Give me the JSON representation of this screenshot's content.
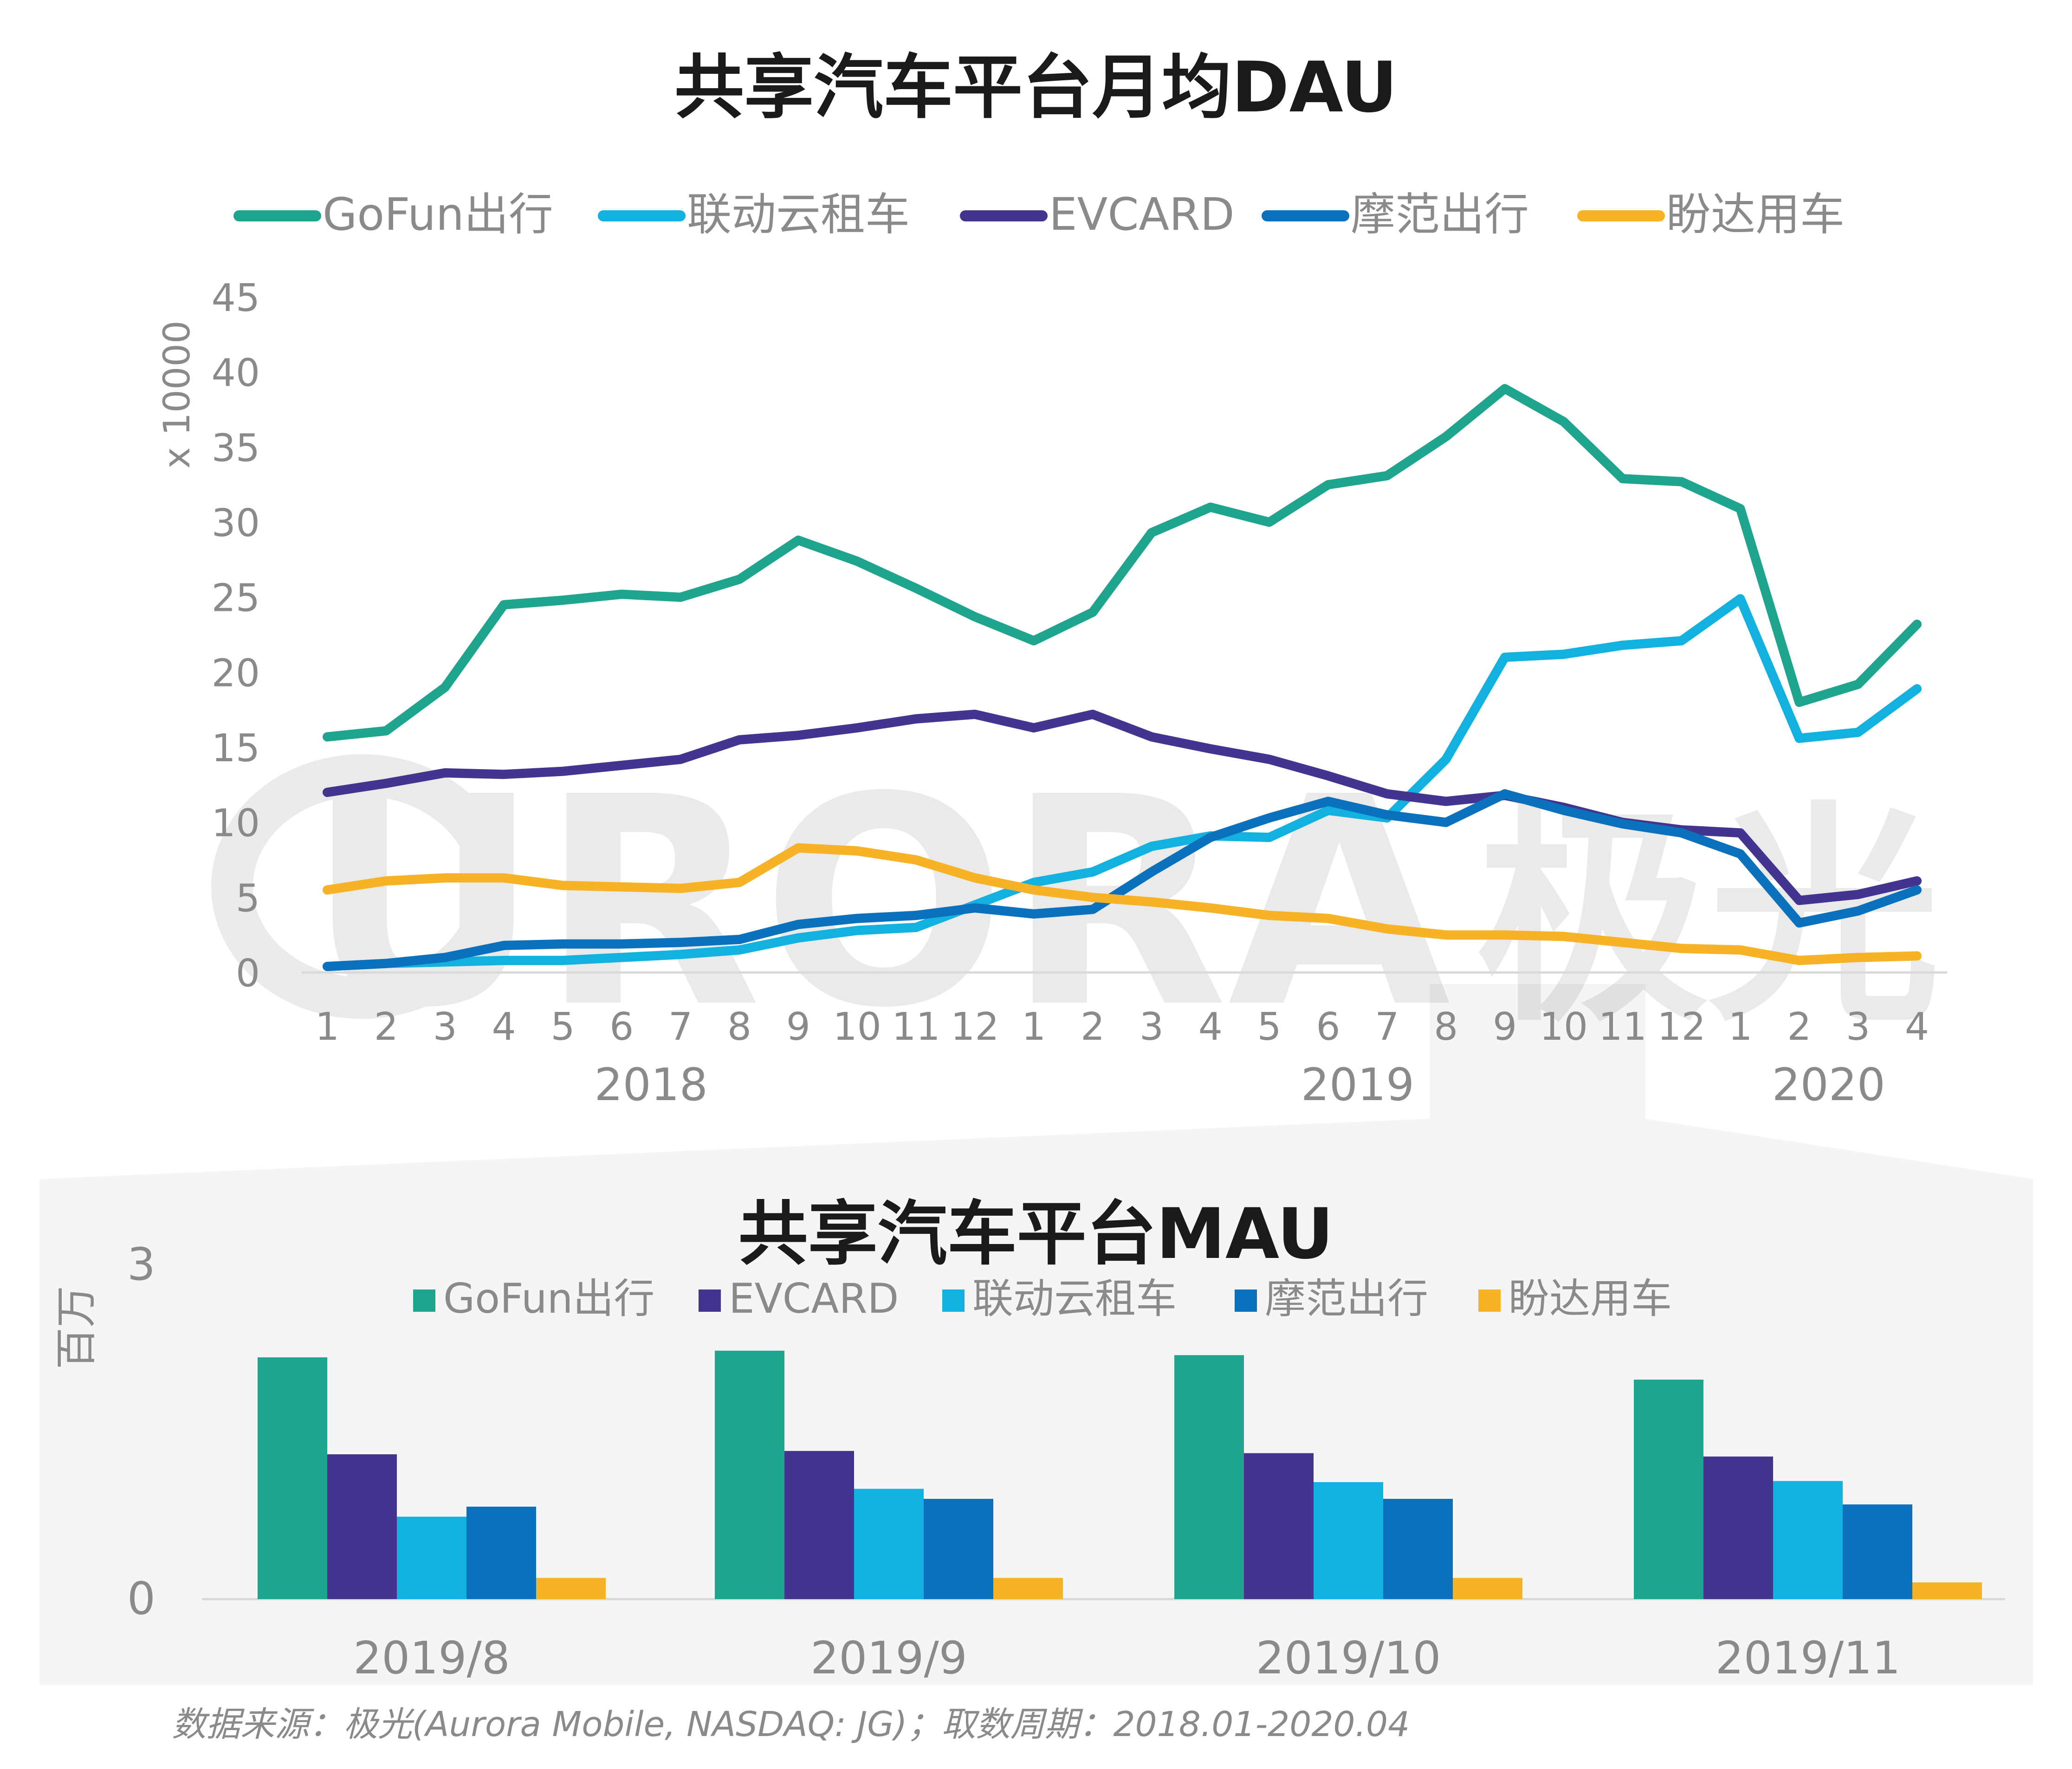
{
  "watermark": {
    "text": "URORA",
    "cjk": "极光"
  },
  "source_note": "数据来源：极光(Aurora Mobile, NASDAQ: JG)；取数周期：2018.01-2020.04",
  "chart_data": [
    {
      "type": "line",
      "title": "共享汽车平台月均DAU",
      "ylabel": "x 10000",
      "ylim": [
        0,
        45
      ],
      "yticks": [
        0,
        5,
        10,
        15,
        20,
        25,
        30,
        35,
        40,
        45
      ],
      "grid": false,
      "legend": "top",
      "categories": [
        "1",
        "2",
        "3",
        "4",
        "5",
        "6",
        "7",
        "8",
        "9",
        "10",
        "11",
        "12",
        "1",
        "2",
        "3",
        "4",
        "5",
        "6",
        "7",
        "8",
        "9",
        "10",
        "11",
        "12",
        "1",
        "2",
        "3",
        "4"
      ],
      "year_groups": [
        {
          "label": "2018",
          "start": 0,
          "end": 11
        },
        {
          "label": "2019",
          "start": 12,
          "end": 23
        },
        {
          "label": "2020",
          "start": 24,
          "end": 27
        }
      ],
      "series": [
        {
          "name": "GoFun出行",
          "color": "#1fa58d",
          "values": [
            15.7,
            16.1,
            19.0,
            24.5,
            24.8,
            25.2,
            25.0,
            26.2,
            28.8,
            27.4,
            25.6,
            23.7,
            22.1,
            24.0,
            29.3,
            31.0,
            30.0,
            32.5,
            33.1,
            35.7,
            38.9,
            36.7,
            32.9,
            32.7,
            30.9,
            18.0,
            19.2,
            23.2
          ]
        },
        {
          "name": "联动云租车",
          "color": "#12b1e0",
          "values": [
            0.4,
            0.6,
            0.7,
            0.8,
            0.8,
            1.0,
            1.2,
            1.5,
            2.3,
            2.8,
            3.0,
            4.5,
            6.0,
            6.7,
            8.4,
            9.1,
            9.0,
            10.8,
            10.3,
            14.2,
            21.0,
            21.2,
            21.8,
            22.1,
            24.9,
            15.6,
            16.0,
            18.9
          ]
        },
        {
          "name": "EVCARD",
          "color": "#42348f",
          "values": [
            12.0,
            12.6,
            13.3,
            13.2,
            13.4,
            13.8,
            14.2,
            15.5,
            15.8,
            16.3,
            16.9,
            17.2,
            16.3,
            17.2,
            15.7,
            14.9,
            14.2,
            13.1,
            11.9,
            11.4,
            11.8,
            11.0,
            10.0,
            9.5,
            9.3,
            4.8,
            5.2,
            6.1
          ]
        },
        {
          "name": "摩范出行",
          "color": "#0b71bd",
          "values": [
            0.4,
            0.6,
            1.0,
            1.8,
            1.9,
            1.9,
            2.0,
            2.2,
            3.2,
            3.6,
            3.8,
            4.3,
            3.9,
            4.2,
            6.7,
            9.0,
            10.3,
            11.4,
            10.5,
            10.0,
            11.9,
            10.8,
            9.9,
            9.3,
            7.9,
            3.3,
            4.1,
            5.5
          ]
        },
        {
          "name": "盼达用车",
          "color": "#f7b226",
          "values": [
            5.5,
            6.1,
            6.3,
            6.3,
            5.8,
            5.7,
            5.6,
            6.0,
            8.3,
            8.1,
            7.5,
            6.3,
            5.5,
            5.0,
            4.7,
            4.3,
            3.8,
            3.6,
            2.9,
            2.5,
            2.5,
            2.4,
            2.0,
            1.6,
            1.5,
            0.8,
            1.0,
            1.1
          ]
        }
      ]
    },
    {
      "type": "bar",
      "title": "共享汽车平台MAU",
      "ylabel": "百万",
      "ylim": [
        0,
        3
      ],
      "yticks": [
        0,
        3
      ],
      "grid": false,
      "legend": "top",
      "categories": [
        "2019/8",
        "2019/9",
        "2019/10",
        "2019/11"
      ],
      "series": [
        {
          "name": "GoFun出行",
          "color": "#1fa58d",
          "values": [
            2.17,
            2.23,
            2.19,
            1.97
          ]
        },
        {
          "name": "EVCARD",
          "color": "#42348f",
          "values": [
            1.3,
            1.33,
            1.31,
            1.28
          ]
        },
        {
          "name": "联动云租车",
          "color": "#12b1e0",
          "values": [
            0.74,
            0.99,
            1.05,
            1.06
          ]
        },
        {
          "name": "摩范出行",
          "color": "#0b71bd",
          "values": [
            0.83,
            0.9,
            0.9,
            0.85
          ]
        },
        {
          "name": "盼达用车",
          "color": "#f7b226",
          "values": [
            0.19,
            0.19,
            0.19,
            0.15
          ]
        }
      ]
    }
  ]
}
